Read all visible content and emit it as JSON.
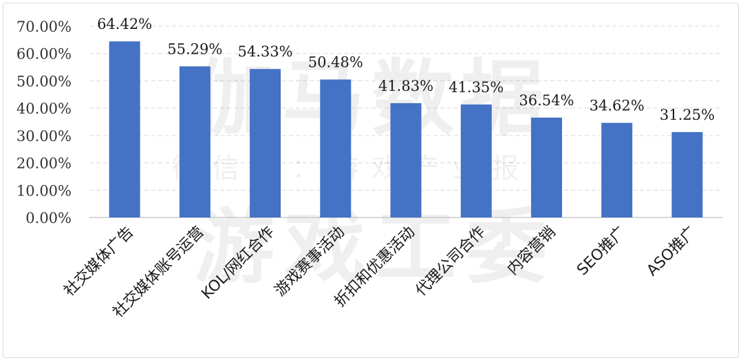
{
  "chart_data": {
    "type": "bar",
    "categories": [
      "社交媒体广告",
      "社交媒体账号运营",
      "KOL/网红合作",
      "游戏赛事活动",
      "折扣和优惠活动",
      "代理公司合作",
      "内容营销",
      "SEO推广",
      "ASO推广"
    ],
    "values": [
      64.42,
      55.29,
      54.33,
      50.48,
      41.83,
      41.35,
      36.54,
      34.62,
      31.25
    ],
    "value_labels": [
      "64.42%",
      "55.29%",
      "54.33%",
      "50.48%",
      "41.83%",
      "41.35%",
      "36.54%",
      "34.62%",
      "31.25%"
    ],
    "y_ticks": [
      "0.00%",
      "10.00%",
      "20.00%",
      "30.00%",
      "40.00%",
      "50.00%",
      "60.00%",
      "70.00%"
    ],
    "ylim": [
      0,
      70
    ],
    "title": "",
    "xlabel": "",
    "ylabel": "",
    "grid": true,
    "legend": "none",
    "bar_color": "#4472c4"
  },
  "watermark": {
    "line1": "伽马数据",
    "line2": "微信号：游戏产业报告",
    "line3": "游戏工委"
  }
}
